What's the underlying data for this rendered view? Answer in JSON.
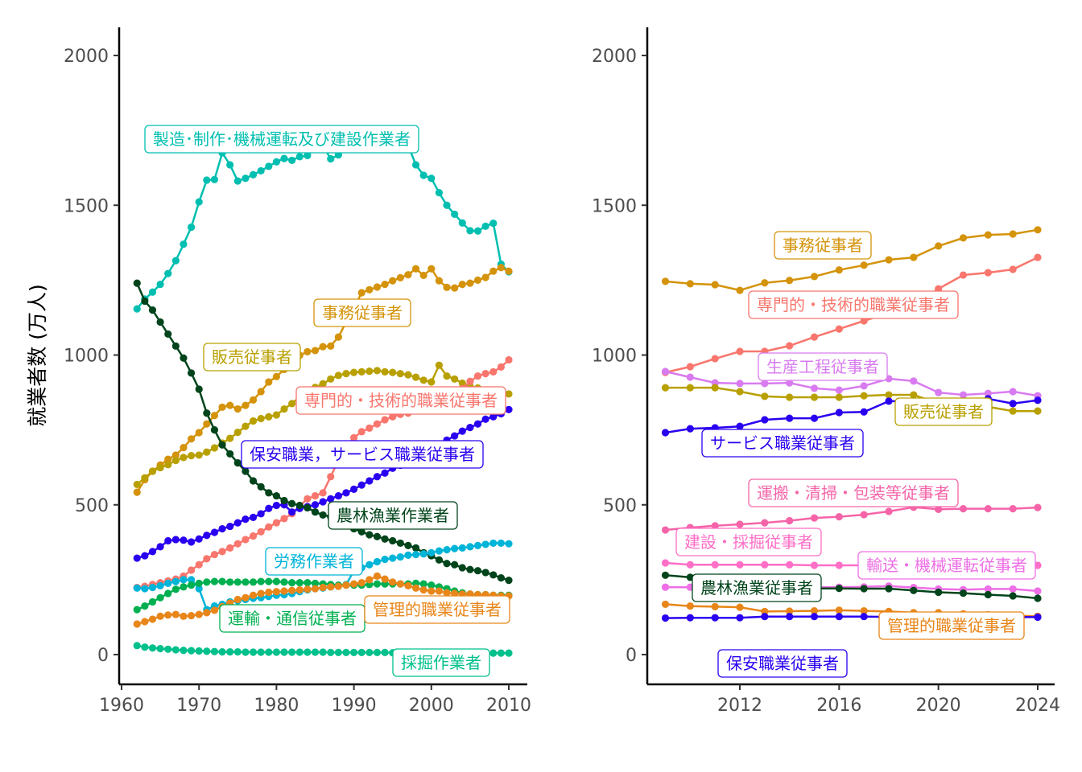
{
  "chart_data": [
    {
      "type": "line",
      "panel": "left",
      "title": "",
      "xlabel": "",
      "ylabel": "就業者数 (万人)",
      "xlim": [
        1962,
        2010
      ],
      "ylim": [
        0,
        2000
      ],
      "xticks": [
        1960,
        1970,
        1980,
        1990,
        2000,
        2010
      ],
      "yticks": [
        0,
        500,
        1000,
        1500,
        2000
      ],
      "grid": false,
      "x": [
        1962,
        1963,
        1964,
        1965,
        1966,
        1967,
        1968,
        1969,
        1970,
        1971,
        1972,
        1973,
        1974,
        1975,
        1976,
        1977,
        1978,
        1979,
        1980,
        1981,
        1982,
        1983,
        1984,
        1985,
        1986,
        1987,
        1988,
        1989,
        1990,
        1991,
        1992,
        1993,
        1994,
        1995,
        1996,
        1997,
        1998,
        1999,
        2000,
        2001,
        2002,
        2003,
        2004,
        2005,
        2006,
        2007,
        2008,
        2009,
        2010
      ],
      "series": [
        {
          "name": "製造・制作・機械運転及び建設作業者",
          "color": "#00BFB0",
          "values": [
            1154,
            1187,
            1210,
            1236,
            1272,
            1315,
            1370,
            1427,
            1511,
            1584,
            1586,
            1675,
            1635,
            1581,
            1590,
            1602,
            1615,
            1630,
            1645,
            1656,
            1650,
            1662,
            1666,
            1690,
            1700,
            1655,
            1668,
            1690,
            1705,
            1712,
            1718,
            1721,
            1716,
            1712,
            1714,
            1700,
            1635,
            1600,
            1590,
            1542,
            1500,
            1470,
            1441,
            1415,
            1414,
            1430,
            1440,
            1303,
            1278
          ]
        },
        {
          "name": "事務従事者",
          "color": "#D4930A",
          "values": [
            542,
            584,
            612,
            633,
            652,
            666,
            691,
            720,
            741,
            770,
            798,
            826,
            832,
            820,
            832,
            850,
            878,
            910,
            928,
            952,
            968,
            999,
            1011,
            1015,
            1028,
            1030,
            1060,
            1110,
            1156,
            1208,
            1218,
            1227,
            1236,
            1248,
            1258,
            1268,
            1288,
            1266,
            1288,
            1248,
            1226,
            1224,
            1236,
            1240,
            1250,
            1259,
            1280,
            1292,
            1280
          ]
        },
        {
          "name": "販売従事者",
          "color": "#B8A000",
          "values": [
            568,
            590,
            612,
            624,
            634,
            648,
            658,
            664,
            666,
            676,
            690,
            706,
            722,
            742,
            762,
            780,
            788,
            794,
            800,
            820,
            838,
            860,
            880,
            892,
            904,
            920,
            932,
            938,
            942,
            944,
            946,
            948,
            944,
            942,
            938,
            934,
            926,
            916,
            910,
            966,
            930,
            920,
            906,
            896,
            890,
            880,
            876,
            872,
            870
          ]
        },
        {
          "name": "専門的・技術的職業従事者",
          "color": "#F8766D",
          "values": [
            224,
            228,
            234,
            240,
            246,
            252,
            262,
            282,
            300,
            320,
            334,
            344,
            356,
            370,
            384,
            396,
            410,
            426,
            440,
            454,
            470,
            496,
            520,
            530,
            540,
            594,
            648,
            694,
            724,
            744,
            756,
            770,
            784,
            794,
            802,
            806,
            816,
            832,
            846,
            856,
            860,
            872,
            888,
            912,
            930,
            938,
            944,
            960,
            984
          ]
        },
        {
          "name": "保安職業，サービス職業従事者",
          "color": "#2A00F0",
          "values": [
            322,
            330,
            344,
            360,
            380,
            384,
            382,
            376,
            386,
            398,
            408,
            420,
            428,
            440,
            452,
            458,
            470,
            488,
            498,
            500,
            476,
            488,
            494,
            500,
            510,
            520,
            530,
            540,
            552,
            566,
            580,
            594,
            606,
            622,
            632,
            642,
            652,
            666,
            680,
            700,
            716,
            730,
            746,
            758,
            770,
            786,
            794,
            804,
            818
          ]
        },
        {
          "name": "農林漁業作業者",
          "color": "#00441B",
          "values": [
            1240,
            1180,
            1150,
            1110,
            1070,
            1030,
            990,
            940,
            886,
            806,
            750,
            700,
            670,
            640,
            612,
            580,
            560,
            540,
            530,
            514,
            504,
            498,
            490,
            476,
            466,
            460,
            448,
            440,
            420,
            410,
            400,
            394,
            386,
            380,
            372,
            364,
            356,
            340,
            330,
            316,
            304,
            300,
            290,
            284,
            280,
            274,
            266,
            256,
            248
          ]
        },
        {
          "name": "労務作業者",
          "color": "#00B4D8",
          "values": [
            222,
            220,
            224,
            230,
            238,
            244,
            250,
            250,
            220,
            150,
            162,
            168,
            176,
            180,
            184,
            188,
            190,
            194,
            198,
            200,
            204,
            210,
            216,
            220,
            222,
            226,
            230,
            234,
            280,
            290,
            300,
            310,
            318,
            322,
            326,
            332,
            334,
            336,
            340,
            346,
            350,
            354,
            356,
            360,
            364,
            368,
            372,
            372,
            370
          ]
        },
        {
          "name": "運輸・通信従事者",
          "color": "#00B050",
          "values": [
            150,
            162,
            176,
            190,
            204,
            218,
            226,
            232,
            238,
            242,
            244,
            244,
            242,
            242,
            242,
            242,
            244,
            244,
            244,
            242,
            240,
            240,
            240,
            238,
            236,
            234,
            232,
            232,
            232,
            232,
            234,
            236,
            236,
            236,
            236,
            236,
            238,
            236,
            232,
            226,
            220,
            212,
            206,
            202,
            200,
            200,
            198,
            198,
            198
          ]
        },
        {
          "name": "管理的職業従事者",
          "color": "#E8861A",
          "values": [
            102,
            110,
            118,
            128,
            132,
            134,
            128,
            130,
            134,
            140,
            148,
            160,
            172,
            184,
            190,
            198,
            204,
            208,
            210,
            212,
            214,
            216,
            218,
            220,
            224,
            226,
            228,
            232,
            236,
            240,
            250,
            262,
            252,
            242,
            236,
            230,
            222,
            216,
            212,
            212,
            206,
            204,
            202,
            202,
            200,
            200,
            198,
            196,
            196
          ]
        },
        {
          "name": "採掘作業者",
          "color": "#00C08B",
          "values": [
            30,
            25,
            22,
            20,
            18,
            16,
            14,
            13,
            12,
            11,
            10,
            9,
            9,
            9,
            8,
            8,
            8,
            8,
            8,
            8,
            8,
            8,
            8,
            8,
            8,
            7,
            7,
            7,
            7,
            7,
            7,
            7,
            7,
            6,
            6,
            6,
            6,
            6,
            6,
            6,
            6,
            6,
            5,
            5,
            5,
            5,
            5,
            5,
            5
          ]
        }
      ]
    },
    {
      "type": "line",
      "panel": "right",
      "title": "",
      "xlabel": "",
      "ylabel": "",
      "xlim": [
        2009,
        2024
      ],
      "ylim": [
        0,
        2000
      ],
      "xticks": [
        2012,
        2016,
        2020,
        2024
      ],
      "yticks": [
        0,
        500,
        1000,
        1500,
        2000
      ],
      "grid": false,
      "x": [
        2009,
        2010,
        2011,
        2012,
        2013,
        2014,
        2015,
        2016,
        2017,
        2018,
        2019,
        2020,
        2021,
        2022,
        2023,
        2024
      ],
      "series": [
        {
          "name": "事務従事者",
          "color": "#D4930A",
          "values": [
            1246,
            1238,
            1235,
            1216,
            1241,
            1249,
            1262,
            1284,
            1300,
            1318,
            1326,
            1364,
            1391,
            1401,
            1404,
            1418
          ]
        },
        {
          "name": "専門的・技術的職業従事者",
          "color": "#F8766D",
          "values": [
            942,
            961,
            988,
            1012,
            1012,
            1031,
            1060,
            1087,
            1114,
            1141,
            1165,
            1221,
            1267,
            1275,
            1286,
            1326
          ]
        },
        {
          "name": "生産工程従事者",
          "color": "#D97BF0",
          "values": [
            945,
            926,
            907,
            905,
            905,
            907,
            889,
            883,
            897,
            921,
            913,
            875,
            867,
            872,
            878,
            864
          ]
        },
        {
          "name": "販売従事者",
          "color": "#B8A000",
          "values": [
            891,
            891,
            891,
            878,
            862,
            859,
            859,
            859,
            864,
            867,
            867,
            838,
            838,
            827,
            813,
            813
          ]
        },
        {
          "name": "サービス職業従事者",
          "color": "#2A00F0",
          "values": [
            741,
            754,
            757,
            762,
            784,
            789,
            789,
            808,
            810,
            846,
            846,
            840,
            846,
            854,
            838,
            849
          ]
        },
        {
          "name": "運搬・清掃・包装等従事者",
          "color": "#F564A8",
          "values": [
            416,
            424,
            430,
            435,
            440,
            447,
            456,
            460,
            467,
            478,
            492,
            485,
            487,
            487,
            487,
            491
          ]
        },
        {
          "name": "建設・採掘従事者",
          "color": "#FF6EC7",
          "values": [
            306,
            300,
            300,
            300,
            300,
            300,
            298,
            298,
            298,
            298,
            298,
            298,
            298,
            298,
            298,
            298
          ]
        },
        {
          "name": "輸送・機械運転従事者",
          "color": "#EE6FE6",
          "values": [
            225,
            225,
            225,
            225,
            225,
            225,
            225,
            225,
            226,
            229,
            224,
            219,
            217,
            219,
            219,
            212
          ]
        },
        {
          "name": "農林漁業従事者",
          "color": "#00441B",
          "values": [
            265,
            258,
            225,
            222,
            222,
            221,
            221,
            221,
            220,
            220,
            214,
            208,
            205,
            200,
            196,
            188
          ]
        },
        {
          "name": "管理的職業従事者",
          "color": "#E8861A",
          "values": [
            168,
            162,
            160,
            158,
            144,
            145,
            146,
            148,
            146,
            144,
            140,
            140,
            136,
            133,
            130,
            128
          ]
        },
        {
          "name": "保安職業従事者",
          "color": "#2A00F0",
          "values": [
            122,
            123,
            123,
            123,
            127,
            127,
            127,
            127,
            127,
            126,
            125,
            125,
            125,
            125,
            125,
            125
          ]
        }
      ]
    }
  ],
  "labels_left": [
    {
      "text": "製造･制作･機械運転及び建設作業者",
      "series": 0
    },
    {
      "text": "事務従事者",
      "series": 1
    },
    {
      "text": "販売従事者",
      "series": 2
    },
    {
      "text": "専門的・技術的職業従事者",
      "series": 3
    },
    {
      "text": "保安職業，サービス職業従事者",
      "series": 4
    },
    {
      "text": "農林漁業作業者",
      "series": 5
    },
    {
      "text": "労務作業者",
      "series": 6
    },
    {
      "text": "運輸・通信従事者",
      "series": 7
    },
    {
      "text": "管理的職業従事者",
      "series": 8
    },
    {
      "text": "採掘作業者",
      "series": 9
    }
  ],
  "labels_right": [
    {
      "text": "事務従事者",
      "series": 0
    },
    {
      "text": "専門的・技術的職業従事者",
      "series": 1
    },
    {
      "text": "生産工程従事者",
      "series": 2
    },
    {
      "text": "販売従事者",
      "series": 3
    },
    {
      "text": "サービス職業従事者",
      "series": 4
    },
    {
      "text": "運搬・清掃・包装等従事者",
      "series": 5
    },
    {
      "text": "建設・採掘従事者",
      "series": 6
    },
    {
      "text": "輸送・機械運転従事者",
      "series": 7
    },
    {
      "text": "農林漁業従事者",
      "series": 8
    },
    {
      "text": "管理的職業従事者",
      "series": 9
    },
    {
      "text": "保安職業従事者",
      "series": 10
    }
  ]
}
